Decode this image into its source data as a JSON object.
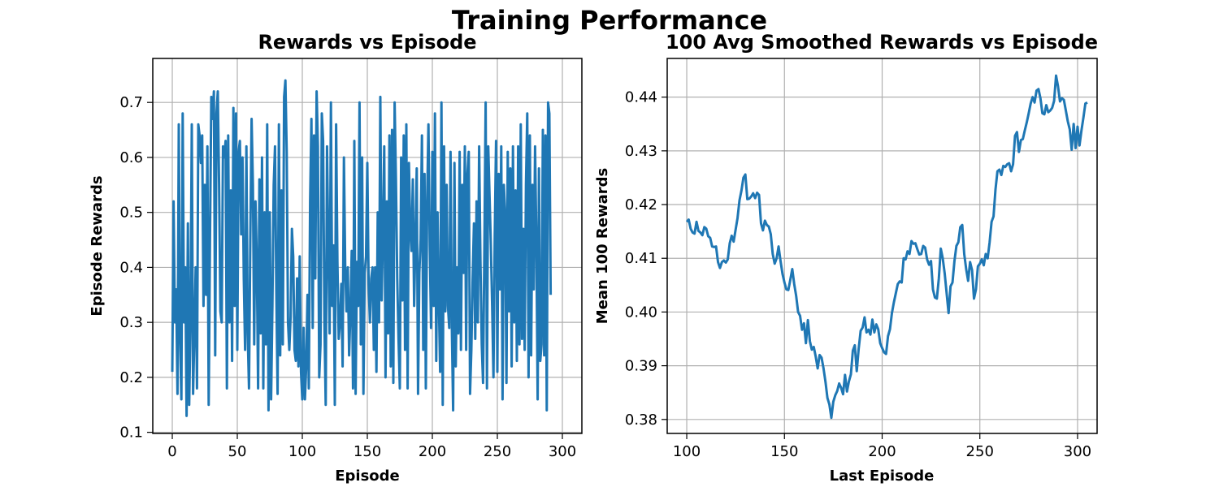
{
  "figure": {
    "title": "Training Performance"
  },
  "colors": {
    "line": "#1f77b4",
    "grid": "#b0b0b0",
    "axes": "#000000"
  },
  "chart_data": [
    {
      "type": "line",
      "title": "Rewards vs Episode",
      "xlabel": "Episode",
      "ylabel": "Episode Rewards",
      "xlim": [
        -15,
        315
      ],
      "ylim": [
        0.098,
        0.78
      ],
      "xticks": [
        0,
        50,
        100,
        150,
        200,
        250,
        300
      ],
      "yticks": [
        0.1,
        0.2,
        0.3,
        0.4,
        0.5,
        0.6,
        0.7
      ],
      "ytick_labels": [
        "0.1",
        "0.2",
        "0.3",
        "0.4",
        "0.5",
        "0.6",
        "0.7"
      ],
      "grid": true,
      "series": [
        {
          "x_start": 0,
          "x_step": 1,
          "values": [
            0.21,
            0.52,
            0.3,
            0.36,
            0.17,
            0.66,
            0.27,
            0.16,
            0.68,
            0.3,
            0.4,
            0.13,
            0.48,
            0.15,
            0.3,
            0.66,
            0.17,
            0.28,
            0.4,
            0.18,
            0.66,
            0.64,
            0.59,
            0.64,
            0.33,
            0.55,
            0.35,
            0.62,
            0.15,
            0.45,
            0.71,
            0.67,
            0.72,
            0.24,
            0.68,
            0.72,
            0.55,
            0.32,
            0.3,
            0.62,
            0.6,
            0.63,
            0.18,
            0.64,
            0.3,
            0.54,
            0.23,
            0.69,
            0.33,
            0.68,
            0.25,
            0.61,
            0.63,
            0.46,
            0.6,
            0.38,
            0.25,
            0.62,
            0.28,
            0.18,
            0.45,
            0.67,
            0.55,
            0.26,
            0.52,
            0.41,
            0.18,
            0.56,
            0.28,
            0.6,
            0.18,
            0.5,
            0.26,
            0.66,
            0.14,
            0.5,
            0.16,
            0.33,
            0.55,
            0.62,
            0.36,
            0.17,
            0.66,
            0.24,
            0.54,
            0.26,
            0.71,
            0.74,
            0.61,
            0.3,
            0.25,
            0.31,
            0.47,
            0.42,
            0.25,
            0.23,
            0.38,
            0.22,
            0.42,
            0.21,
            0.16,
            0.29,
            0.16,
            0.22,
            0.35,
            0.18,
            0.52,
            0.67,
            0.29,
            0.64,
            0.38,
            0.72,
            0.62,
            0.2,
            0.26,
            0.68,
            0.63,
            0.3,
            0.15,
            0.62,
            0.44,
            0.28,
            0.7,
            0.33,
            0.44,
            0.15,
            0.66,
            0.41,
            0.27,
            0.3,
            0.37,
            0.22,
            0.6,
            0.4,
            0.32,
            0.4,
            0.24,
            0.32,
            0.43,
            0.18,
            0.63,
            0.17,
            0.41,
            0.33,
            0.7,
            0.26,
            0.6,
            0.17,
            0.39,
            0.42,
            0.59,
            0.37,
            0.3,
            0.38,
            0.4,
            0.25,
            0.4,
            0.21,
            0.5,
            0.3,
            0.71,
            0.34,
            0.46,
            0.62,
            0.2,
            0.52,
            0.28,
            0.64,
            0.22,
            0.65,
            0.19,
            0.7,
            0.56,
            0.38,
            0.27,
            0.18,
            0.6,
            0.34,
            0.64,
            0.25,
            0.66,
            0.18,
            0.59,
            0.47,
            0.43,
            0.56,
            0.33,
            0.45,
            0.58,
            0.17,
            0.39,
            0.45,
            0.64,
            0.25,
            0.57,
            0.18,
            0.52,
            0.66,
            0.44,
            0.29,
            0.61,
            0.33,
            0.68,
            0.23,
            0.5,
            0.34,
            0.21,
            0.7,
            0.15,
            0.62,
            0.32,
            0.55,
            0.33,
            0.29,
            0.61,
            0.29,
            0.14,
            0.59,
            0.22,
            0.4,
            0.28,
            0.61,
            0.25,
            0.55,
            0.39,
            0.62,
            0.25,
            0.57,
            0.61,
            0.17,
            0.25,
            0.38,
            0.48,
            0.27,
            0.52,
            0.3,
            0.62,
            0.41,
            0.26,
            0.19,
            0.43,
            0.7,
            0.18,
            0.62,
            0.53,
            0.44,
            0.33,
            0.2,
            0.46,
            0.63,
            0.21,
            0.57,
            0.36,
            0.62,
            0.16,
            0.55,
            0.5,
            0.19,
            0.61,
            0.32,
            0.58,
            0.22,
            0.62,
            0.3,
            0.54,
            0.23,
            0.62,
            0.26,
            0.66,
            0.27,
            0.47,
            0.25,
            0.55,
            0.68,
            0.2,
            0.64,
            0.24,
            0.55,
            0.36,
            0.62,
            0.45,
            0.16,
            0.58,
            0.23,
            0.26,
            0.65,
            0.24,
            0.64,
            0.14,
            0.7,
            0.68,
            0.35
          ]
        }
      ]
    },
    {
      "type": "line",
      "title": "100 Avg Smoothed Rewards vs Episode",
      "xlabel": "Last Episode",
      "ylabel": "Mean 100 Rewards",
      "xlim": [
        90,
        310
      ],
      "ylim": [
        0.3774,
        0.4472
      ],
      "xticks": [
        100,
        150,
        200,
        250,
        300
      ],
      "yticks": [
        0.38,
        0.39,
        0.4,
        0.41,
        0.42,
        0.43,
        0.44
      ],
      "ytick_labels": [
        "0.38",
        "0.39",
        "0.40",
        "0.41",
        "0.42",
        "0.43",
        "0.44"
      ],
      "grid": true,
      "series": [
        {
          "x_start": 100,
          "x_step": 1,
          "values": [
            0.4168,
            0.4172,
            0.4155,
            0.4148,
            0.4146,
            0.4168,
            0.4151,
            0.4148,
            0.4143,
            0.4158,
            0.4155,
            0.4141,
            0.4138,
            0.4122,
            0.4121,
            0.4122,
            0.4093,
            0.4082,
            0.4093,
            0.4096,
            0.4092,
            0.4098,
            0.4128,
            0.4142,
            0.4131,
            0.4153,
            0.4175,
            0.4208,
            0.4226,
            0.425,
            0.4256,
            0.421,
            0.4211,
            0.4215,
            0.4221,
            0.4212,
            0.4222,
            0.4218,
            0.4165,
            0.4152,
            0.417,
            0.4162,
            0.4159,
            0.4145,
            0.4108,
            0.409,
            0.41,
            0.4122,
            0.4095,
            0.4071,
            0.4055,
            0.4042,
            0.4041,
            0.406,
            0.408,
            0.4052,
            0.403,
            0.4,
            0.3993,
            0.3967,
            0.3979,
            0.3942,
            0.3985,
            0.3946,
            0.393,
            0.3935,
            0.3917,
            0.3895,
            0.392,
            0.3915,
            0.3895,
            0.387,
            0.384,
            0.3828,
            0.3803,
            0.3833,
            0.3845,
            0.3853,
            0.3867,
            0.3859,
            0.3847,
            0.3883,
            0.3852,
            0.3871,
            0.3884,
            0.3928,
            0.3938,
            0.389,
            0.3932,
            0.3965,
            0.3971,
            0.399,
            0.3962,
            0.3967,
            0.3958,
            0.3986,
            0.3962,
            0.3977,
            0.3968,
            0.3942,
            0.3933,
            0.3925,
            0.3922,
            0.3955,
            0.3968,
            0.3998,
            0.4018,
            0.4035,
            0.4052,
            0.4057,
            0.4055,
            0.41,
            0.4098,
            0.4113,
            0.4108,
            0.4132,
            0.4127,
            0.4128,
            0.4117,
            0.4107,
            0.4108,
            0.4123,
            0.412,
            0.4098,
            0.4088,
            0.4095,
            0.4042,
            0.4027,
            0.4025,
            0.4062,
            0.4118,
            0.41,
            0.4072,
            0.4035,
            0.3998,
            0.4048,
            0.4055,
            0.4095,
            0.4123,
            0.413,
            0.4158,
            0.4162,
            0.4108,
            0.408,
            0.4058,
            0.4093,
            0.4078,
            0.4025,
            0.4042,
            0.4085,
            0.409,
            0.4098,
            0.4087,
            0.4108,
            0.41,
            0.413,
            0.4168,
            0.4178,
            0.4228,
            0.4262,
            0.4265,
            0.4255,
            0.4272,
            0.427,
            0.4275,
            0.4277,
            0.4262,
            0.4275,
            0.4328,
            0.4335,
            0.4298,
            0.432,
            0.4322,
            0.4338,
            0.4353,
            0.437,
            0.4388,
            0.44,
            0.439,
            0.4412,
            0.4415,
            0.4398,
            0.437,
            0.4368,
            0.4385,
            0.4372,
            0.4375,
            0.438,
            0.4393,
            0.444,
            0.442,
            0.4392,
            0.4398,
            0.4395,
            0.4375,
            0.4355,
            0.434,
            0.4302,
            0.435,
            0.4305,
            0.4345,
            0.431,
            0.4338,
            0.4362,
            0.4388,
            0.439
          ]
        }
      ]
    }
  ]
}
